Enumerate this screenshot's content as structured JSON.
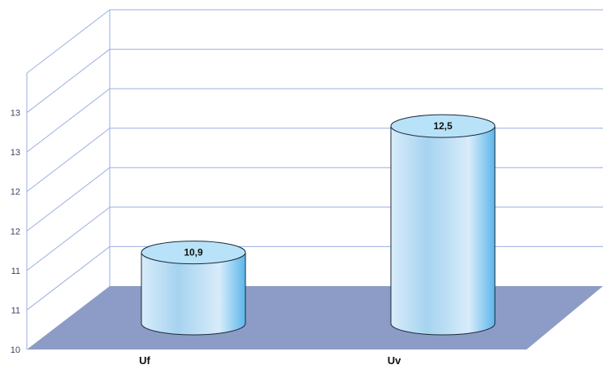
{
  "chart_data": {
    "type": "bar",
    "bar_style": "3d-cylinder",
    "categories": [
      "Uf",
      "Uv"
    ],
    "values": [
      10.9,
      12.5
    ],
    "data_labels": [
      "10,9",
      "12,5"
    ],
    "y_ticks": [
      10,
      10.5,
      11,
      11.5,
      12,
      12.5,
      13,
      13.5
    ],
    "y_tick_labels": [
      "10",
      "11",
      "11",
      "12",
      "12",
      "13",
      "13",
      ""
    ],
    "ylim": [
      10,
      13.5
    ],
    "grid": true,
    "legend": "none",
    "title": "",
    "xlabel": "",
    "ylabel": ""
  },
  "colors": {
    "floor": "#8d9cc6",
    "wall_line": "#9aaee0",
    "bar_light": "#d8ecfa",
    "bar_mid": "#a6d3f0",
    "bar_dark": "#5cb6ea",
    "bar_top": "#b8e2f8",
    "bar_stroke": "#1b2a3a"
  }
}
